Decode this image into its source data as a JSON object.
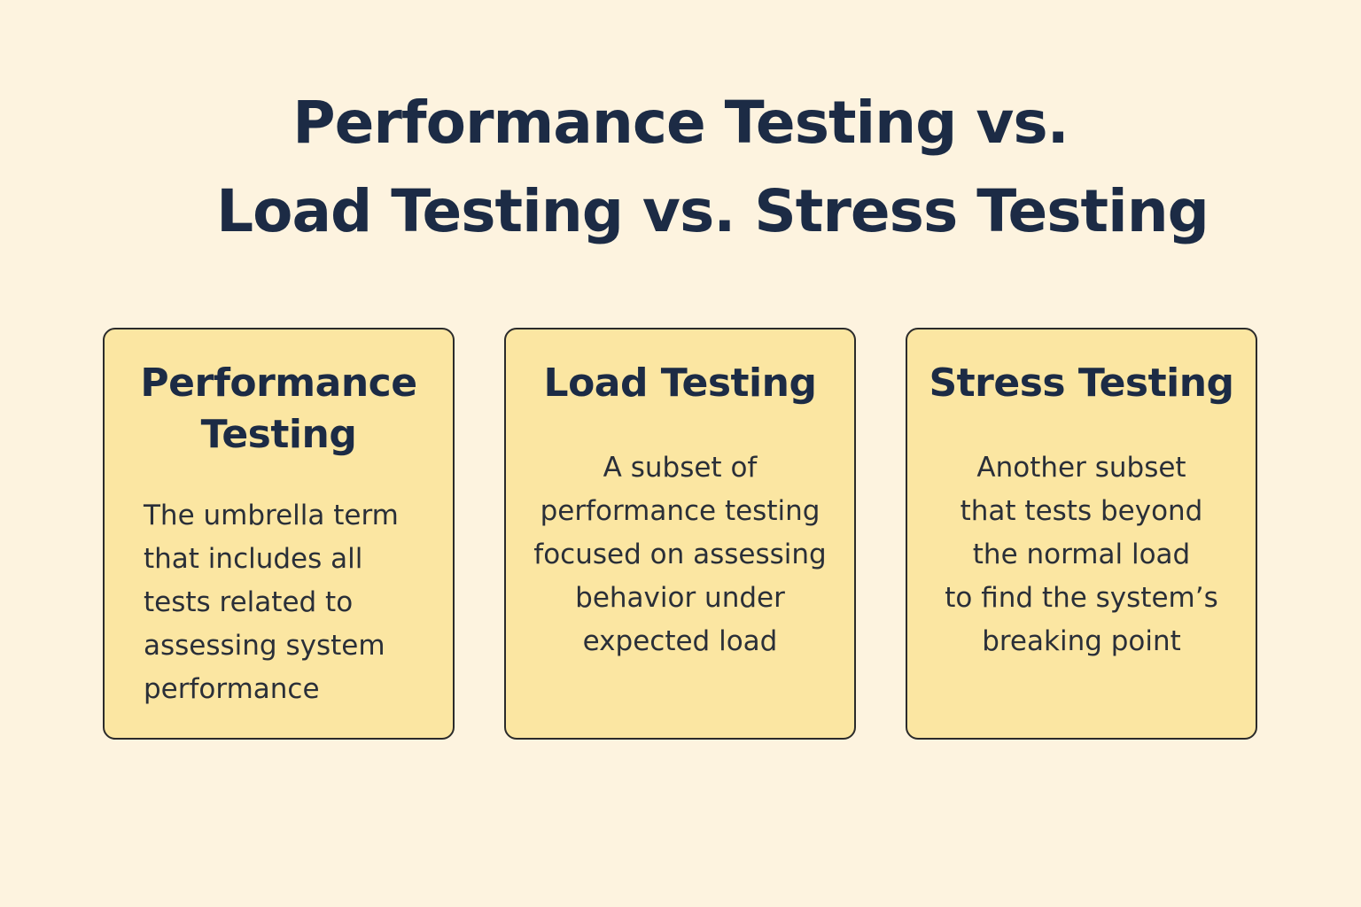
{
  "title": [
    "Performance Testing vs.",
    "Load Testing vs. Stress Testing"
  ],
  "cards": [
    {
      "heading": "Performance Testing",
      "body": [
        "The umbrella term",
        "that includes all",
        "tests related to",
        "assessing system",
        "performance"
      ]
    },
    {
      "heading": "Load Testing",
      "body": [
        "A subset of",
        "performance testing",
        "focused on assessing",
        "behavior under",
        "expected load"
      ]
    },
    {
      "heading": "Stress Testing",
      "body": [
        "Another subset",
        "that tests beyond",
        "the normal load",
        "to find the system’s",
        "breaking point"
      ]
    }
  ]
}
